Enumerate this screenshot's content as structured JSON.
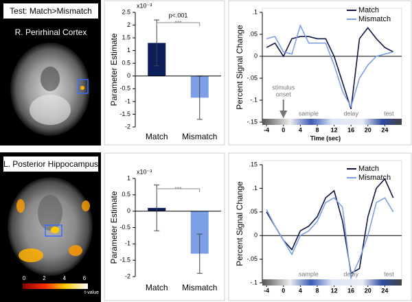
{
  "header": "Test: Match>Mismatch",
  "regions": [
    "R. Perirhinal Cortex",
    "L. Posterior Hippocampus"
  ],
  "colorbar": {
    "ticks": [
      0,
      2,
      4,
      6
    ],
    "label": "t-value"
  },
  "chart_data": [
    {
      "type": "bar",
      "y_label": "Parameter Estimate",
      "y_scale_label": "x10⁻³",
      "categories": [
        "Match",
        "Mismatch"
      ],
      "values": [
        1.3,
        -0.85
      ],
      "errors": [
        0.9,
        0.85
      ],
      "colors": [
        "#0c1f5c",
        "#7c9fe6"
      ],
      "ylim": [
        -2,
        2.5
      ],
      "yticks": [
        -2,
        -1.5,
        -1,
        -0.5,
        0,
        0.5,
        1,
        1.5,
        2,
        2.5
      ],
      "annotations": [
        "p<.001",
        "***"
      ]
    },
    {
      "type": "line",
      "y_label": "Percent Signal Change",
      "x_label": "Time (sec)",
      "x": [
        -4,
        -2,
        0,
        2,
        4,
        6,
        8,
        10,
        12,
        14,
        16,
        18,
        20,
        22,
        24,
        26
      ],
      "series": [
        {
          "name": "Match",
          "color": "#0c1440",
          "values": [
            0.02,
            0.03,
            0.0,
            0.04,
            0.045,
            0.045,
            0.04,
            0.04,
            0.0,
            -0.06,
            -0.12,
            0.04,
            0.065,
            0.04,
            0.02,
            0.01
          ]
        },
        {
          "name": "Mismatch",
          "color": "#7c9fe6",
          "values": [
            0.04,
            0.045,
            0.01,
            0.005,
            0.07,
            0.03,
            0.03,
            0.03,
            -0.02,
            -0.08,
            -0.115,
            -0.05,
            -0.02,
            0.0,
            0.005,
            0.01
          ]
        }
      ],
      "xlim": [
        -5,
        28
      ],
      "xticks": [
        -4,
        0,
        4,
        8,
        12,
        16,
        20,
        24
      ],
      "ylim": [
        -0.15,
        0.1
      ],
      "yticks": [
        {
          "value": -0.15,
          "label": "-.15"
        },
        {
          "value": -0.1,
          "label": "-.1"
        },
        {
          "value": -0.05,
          "label": "-.05"
        },
        0,
        {
          "value": 0.05,
          "label": ".05"
        },
        {
          "value": 0.1,
          "label": ".1"
        }
      ],
      "annotations": [
        "stimulus",
        "onset",
        "sample",
        "delay",
        "test"
      ]
    },
    {
      "type": "bar",
      "y_label": "Parameter Estimate",
      "y_scale_label": "x10⁻³",
      "categories": [
        "Match",
        "Mismatch"
      ],
      "values": [
        0.1,
        -1.3
      ],
      "errors": [
        0.7,
        0.6
      ],
      "colors": [
        "#0c1f5c",
        "#7c9fe6"
      ],
      "ylim": [
        -2,
        1
      ],
      "yticks": [
        -2,
        -1.5,
        -1,
        -0.5,
        0,
        0.5,
        1
      ],
      "annotations": [
        "***"
      ]
    },
    {
      "type": "line",
      "y_label": "Percent Signal Change",
      "x": [
        -4,
        -2,
        0,
        2,
        4,
        6,
        8,
        10,
        12,
        14,
        16,
        18,
        20,
        22,
        24,
        26
      ],
      "series": [
        {
          "name": "Match",
          "color": "#0c1440",
          "values": [
            0.05,
            0.02,
            -0.01,
            -0.03,
            0.01,
            0.02,
            0.04,
            0.08,
            0.095,
            0.03,
            -0.08,
            -0.07,
            0.04,
            0.1,
            0.12,
            0.08
          ]
        },
        {
          "name": "Mismatch",
          "color": "#7c9fe6",
          "values": [
            0.055,
            0.02,
            -0.01,
            -0.04,
            0.0,
            0.01,
            0.03,
            0.07,
            0.08,
            0.06,
            -0.09,
            -0.05,
            0.0,
            0.07,
            0.08,
            0.05
          ]
        }
      ],
      "xlim": [
        -5,
        28
      ],
      "xticks": [
        -4,
        0,
        4,
        8,
        12,
        16,
        20,
        24
      ],
      "ylim": [
        -0.1,
        0.15
      ],
      "yticks": [
        {
          "value": -0.1,
          "label": "-.1"
        },
        {
          "value": -0.05,
          "label": "-.05"
        },
        0,
        {
          "value": 0.05,
          "label": ".05"
        },
        {
          "value": 0.1,
          "label": ".1"
        },
        {
          "value": 0.15,
          "label": ".15"
        }
      ],
      "annotations": [
        "sample",
        "delay",
        "test"
      ]
    }
  ]
}
